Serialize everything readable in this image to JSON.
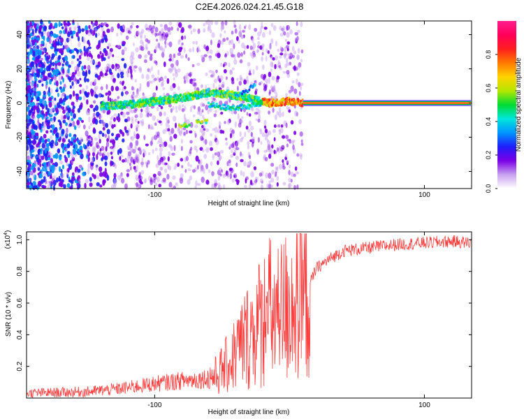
{
  "title": "C2E4.2026.024.21.45.G18",
  "chart_data": [
    {
      "type": "heatmap",
      "xlabel": "Height of straight line (km)",
      "ylabel": "Frequency (Hz)",
      "xlim": [
        -195,
        135
      ],
      "ylim": [
        -50,
        48
      ],
      "xticks": [
        -100,
        100
      ],
      "yticks": [
        -40,
        -20,
        0,
        20,
        40
      ],
      "colorbar": {
        "label": "Normalized spectral amplitude",
        "range": [
          0,
          1
        ],
        "ticks": [
          0.0,
          0.2,
          0.4,
          0.6,
          0.8
        ],
        "tick_labels": [
          "0.0",
          "0.2",
          "0.4",
          "0.6",
          "0.8"
        ],
        "colors": [
          "#ffffff",
          "#c8a0f0",
          "#7a00e6",
          "#1e1efa",
          "#0096ff",
          "#00e6dc",
          "#00dc32",
          "#b4e600",
          "#ffd200",
          "#ff7800",
          "#ff1e1e",
          "#ff005a",
          "#ff1e8c"
        ]
      },
      "ridge": [
        {
          "x": -140,
          "y": -2
        },
        {
          "x": -120,
          "y": -1
        },
        {
          "x": -100,
          "y": 1
        },
        {
          "x": -80,
          "y": 3
        },
        {
          "x": -60,
          "y": 6
        },
        {
          "x": -45,
          "y": 5
        },
        {
          "x": -30,
          "y": 3
        },
        {
          "x": -15,
          "y": 0
        },
        {
          "x": 0,
          "y": 1
        },
        {
          "x": 10,
          "y": 0
        },
        {
          "x": 135,
          "y": 0
        }
      ],
      "ridge_lower": [
        {
          "x": -60,
          "y": -1
        },
        {
          "x": -45,
          "y": -3
        },
        {
          "x": -30,
          "y": -2
        },
        {
          "x": -20,
          "y": 0
        }
      ],
      "blobs_low": [
        {
          "x": -78,
          "y": -13
        },
        {
          "x": -65,
          "y": -11
        }
      ],
      "ridge_upper": [
        {
          "x": -40,
          "y": 4
        },
        {
          "x": -30,
          "y": 8
        },
        {
          "x": -25,
          "y": 11
        }
      ],
      "strong_band": {
        "x_start": 10,
        "x_end": 135,
        "y": 0
      }
    },
    {
      "type": "line",
      "xlabel": "Height of straight line (km)",
      "ylabel": "SNR (10 * v/v)",
      "yscale_label": "(x10",
      "yscale_exp": "4",
      "yscale_close": ")",
      "xlim": [
        -195,
        135
      ],
      "ylim": [
        0,
        1.05
      ],
      "xticks": [
        -100,
        100
      ],
      "yticks": [
        0.2,
        0.4,
        0.6,
        0.8,
        1.0
      ],
      "ytick_labels": [
        "0.2",
        "0.4",
        "0.6",
        "0.8",
        "1.0"
      ],
      "color": "#ff3c3c",
      "series": [
        {
          "name": "SNR",
          "x": [
            -195,
            -150,
            -125,
            -100,
            -80,
            -65,
            -55,
            -45,
            -35,
            -25,
            -15,
            -10,
            -5,
            0,
            5,
            10,
            15,
            20,
            30,
            40,
            60,
            80,
            100,
            120,
            135
          ],
          "y": [
            0.03,
            0.04,
            0.06,
            0.09,
            0.11,
            0.12,
            0.14,
            0.22,
            0.35,
            0.45,
            0.55,
            0.5,
            0.55,
            0.6,
            0.62,
            0.62,
            0.72,
            0.82,
            0.88,
            0.93,
            0.95,
            0.97,
            0.98,
            0.99,
            0.98
          ]
        }
      ]
    }
  ]
}
